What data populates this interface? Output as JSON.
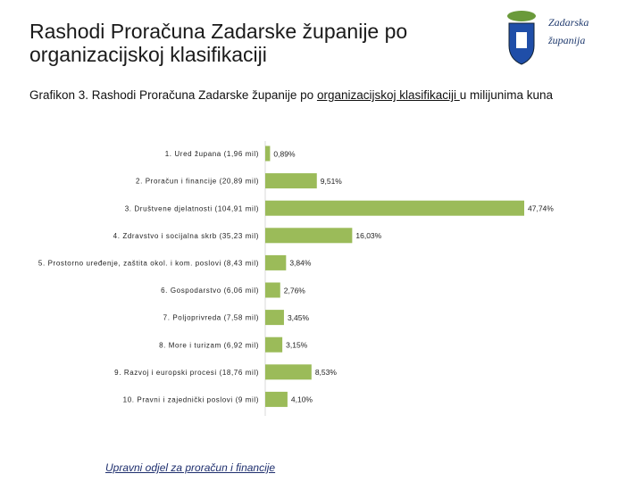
{
  "header": {
    "title": "Rashodi Proračuna Zadarske županije po organizacijskoj klasifikaciji",
    "logo_lines": [
      "Zadarska",
      "županija"
    ]
  },
  "chart_data": {
    "type": "bar",
    "orientation": "horizontal",
    "subtitle_parts": [
      "Grafikon 3. Rashodi Proračuna Zadarske županije po ",
      "organizacijskoj klasifikaciji ",
      "u milijunima kuna"
    ],
    "categories": [
      "1. Ured župana (1,96 mil)",
      "2. Proračun i financije (20,89 mil)",
      "3. Društvene djelatnosti (104,91 mil)",
      "4. Zdravstvo i socijalna skrb (35,23 mil)",
      "5. Prostorno uređenje, zaštita okol. i kom. poslovi (8,43 mil)",
      "6. Gospodarstvo (6,06 mil)",
      "7. Poljoprivreda (7,58 mil)",
      "8. More i turizam (6,92 mil)",
      "9. Razvoj i europski procesi (18,76 mil)",
      "10. Pravni i zajednički poslovi (9 mil)"
    ],
    "values": [
      0.89,
      9.51,
      47.74,
      16.03,
      3.84,
      2.76,
      3.45,
      3.15,
      8.53,
      4.1
    ],
    "value_labels": [
      "0,89%",
      "9,51%",
      "47,74%",
      "16,03%",
      "3,84%",
      "2,76%",
      "3,45%",
      "3,15%",
      "8,53%",
      "4,10%"
    ],
    "color": "#9bbb59"
  },
  "footer": "Upravni odjel za proračun i financije"
}
